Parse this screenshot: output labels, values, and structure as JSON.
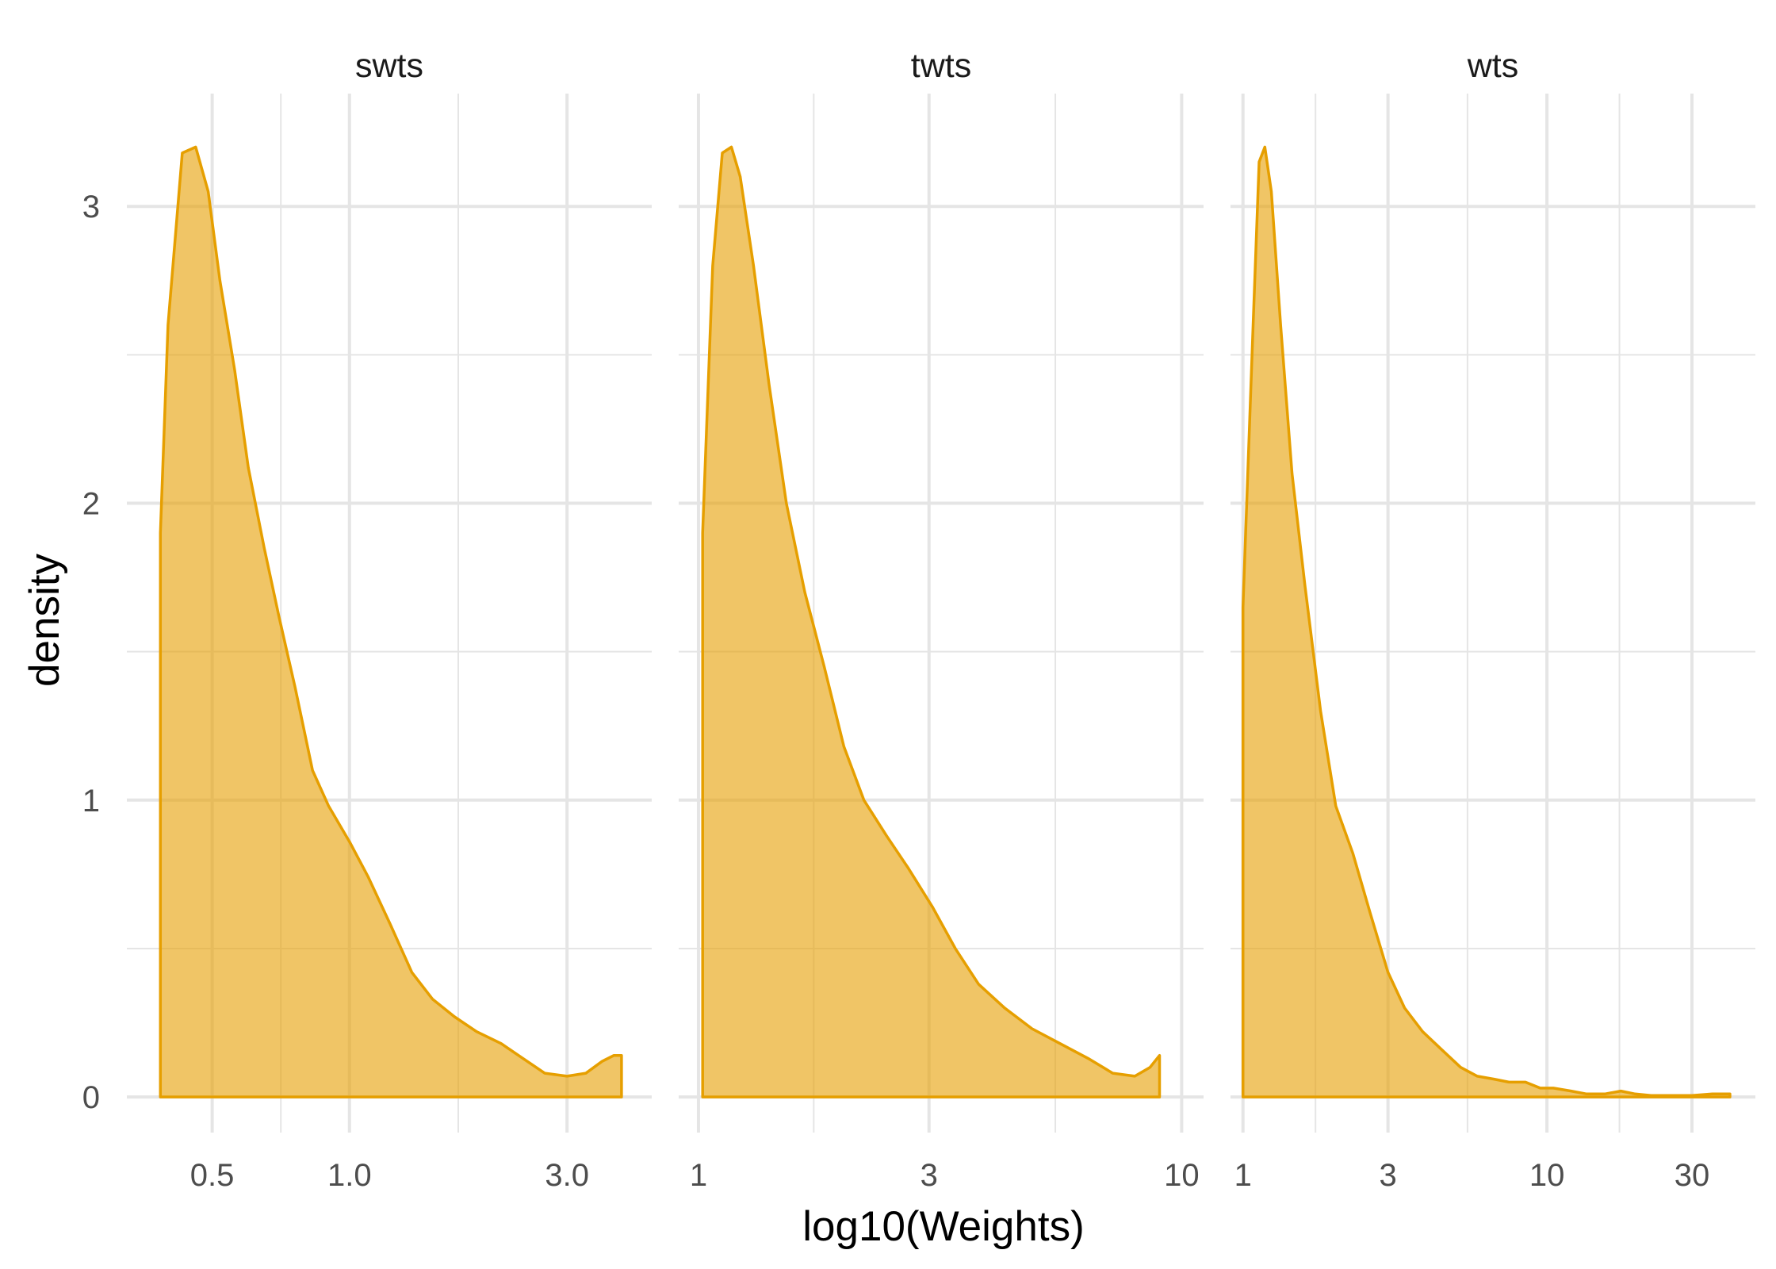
{
  "chart_data": {
    "type": "area",
    "xlabel": "log10(Weights)",
    "ylabel": "density",
    "ylim": [
      -0.12,
      3.38
    ],
    "y_ticks": [
      0,
      1,
      2,
      3
    ],
    "y_tick_labels": [
      "0",
      "1",
      "2",
      "3"
    ],
    "x_scale": "log10",
    "grid": true,
    "colors": {
      "fill": "#E69F00",
      "fill_opacity": 0.6,
      "line": "#E69F00",
      "grid": "#e5e5e5"
    },
    "panels": [
      {
        "name": "swts",
        "xlim": [
          0.325,
          4.6
        ],
        "x_ticks": [
          0.5,
          1.0,
          3.0
        ],
        "x_tick_labels": [
          "0.5",
          "1.0",
          "3.0"
        ],
        "x_minor": [
          0.7071,
          1.7321
        ],
        "x": [
          0.385,
          0.4,
          0.43,
          0.46,
          0.49,
          0.52,
          0.56,
          0.6,
          0.65,
          0.7,
          0.76,
          0.83,
          0.9,
          1.0,
          1.1,
          1.23,
          1.37,
          1.52,
          1.7,
          1.9,
          2.15,
          2.4,
          2.68,
          3.0,
          3.3,
          3.58,
          3.8,
          3.95
        ],
        "y": [
          1.9,
          2.6,
          3.18,
          3.2,
          3.05,
          2.75,
          2.45,
          2.12,
          1.85,
          1.62,
          1.38,
          1.1,
          0.98,
          0.86,
          0.74,
          0.58,
          0.42,
          0.33,
          0.27,
          0.22,
          0.18,
          0.13,
          0.08,
          0.07,
          0.08,
          0.12,
          0.14,
          0.14
        ]
      },
      {
        "name": "twts",
        "xlim": [
          0.91,
          11.1
        ],
        "x_ticks": [
          1,
          3,
          10
        ],
        "x_tick_labels": [
          "1",
          "3",
          "10"
        ],
        "x_minor": [
          1.7321,
          5.4772
        ],
        "x": [
          1.02,
          1.07,
          1.12,
          1.17,
          1.22,
          1.3,
          1.4,
          1.52,
          1.66,
          1.82,
          2.0,
          2.2,
          2.45,
          2.72,
          3.05,
          3.4,
          3.8,
          4.3,
          4.9,
          5.6,
          6.4,
          7.2,
          8.0,
          8.6,
          9.0
        ],
        "y": [
          1.9,
          2.8,
          3.18,
          3.2,
          3.1,
          2.8,
          2.4,
          2.0,
          1.7,
          1.45,
          1.18,
          1.0,
          0.88,
          0.77,
          0.64,
          0.5,
          0.38,
          0.3,
          0.23,
          0.18,
          0.13,
          0.08,
          0.07,
          0.1,
          0.14
        ]
      },
      {
        "name": "wts",
        "xlim": [
          0.91,
          48.5
        ],
        "x_ticks": [
          1,
          3,
          10,
          30
        ],
        "x_tick_labels": [
          "1",
          "3",
          "10",
          "30"
        ],
        "x_minor": [
          1.7321,
          5.4772,
          17.3205
        ],
        "x": [
          1.0,
          1.08,
          1.13,
          1.18,
          1.24,
          1.33,
          1.45,
          1.6,
          1.8,
          2.02,
          2.3,
          2.62,
          3.0,
          3.4,
          3.9,
          4.5,
          5.2,
          5.9,
          6.7,
          7.5,
          8.5,
          9.5,
          10.5,
          12.0,
          13.5,
          15.5,
          17.5,
          19.5,
          22.0,
          25.0,
          30.0,
          35.0,
          40.0
        ],
        "y": [
          1.65,
          2.6,
          3.15,
          3.2,
          3.05,
          2.6,
          2.1,
          1.72,
          1.3,
          0.98,
          0.82,
          0.62,
          0.42,
          0.3,
          0.22,
          0.16,
          0.1,
          0.07,
          0.06,
          0.05,
          0.05,
          0.03,
          0.03,
          0.02,
          0.01,
          0.01,
          0.02,
          0.01,
          0.005,
          0.005,
          0.005,
          0.01,
          0.01
        ]
      }
    ]
  }
}
